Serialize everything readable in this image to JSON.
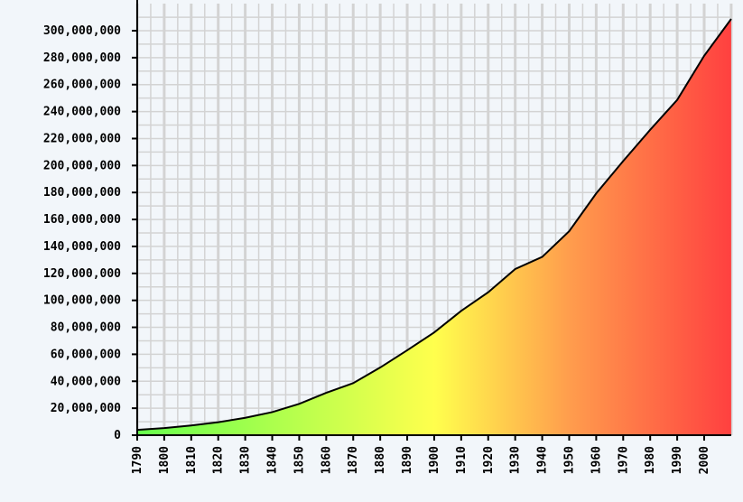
{
  "chart_data": {
    "type": "area",
    "title": "",
    "xlabel": "",
    "ylabel": "",
    "xlim": [
      1790,
      2010
    ],
    "ylim": [
      0,
      300000000
    ],
    "grid": true,
    "x_ticks": [
      "1790",
      "1800",
      "1810",
      "1820",
      "1830",
      "1840",
      "1850",
      "1860",
      "1870",
      "1880",
      "1890",
      "1900",
      "1910",
      "1920",
      "1930",
      "1940",
      "1950",
      "1960",
      "1970",
      "1980",
      "1990",
      "2000"
    ],
    "y_ticks": [
      "0",
      "20,000,000",
      "40,000,000",
      "60,000,000",
      "80,000,000",
      "100,000,000",
      "120,000,000",
      "140,000,000",
      "160,000,000",
      "180,000,000",
      "200,000,000",
      "220,000,000",
      "240,000,000",
      "260,000,000",
      "280,000,000",
      "300,000,000"
    ],
    "x": [
      1790,
      1800,
      1810,
      1820,
      1830,
      1840,
      1850,
      1860,
      1870,
      1880,
      1890,
      1900,
      1910,
      1920,
      1930,
      1940,
      1950,
      1960,
      1970,
      1980,
      1990,
      2000,
      2010
    ],
    "values": [
      3900000,
      5300000,
      7200000,
      9600000,
      12900000,
      17100000,
      23200000,
      31400000,
      38600000,
      50200000,
      63000000,
      76200000,
      92200000,
      106000000,
      123200000,
      132200000,
      151300000,
      179300000,
      203300000,
      226500000,
      248700000,
      281400000,
      308700000
    ],
    "colors": {
      "background": "#f2f6fa",
      "grid": "#d3d3d3",
      "gradient_start": "#66ff4d",
      "gradient_mid": "#ffff4d",
      "gradient_orange": "#ff9c4d",
      "gradient_end": "#ff4040",
      "line": "#000000"
    }
  }
}
